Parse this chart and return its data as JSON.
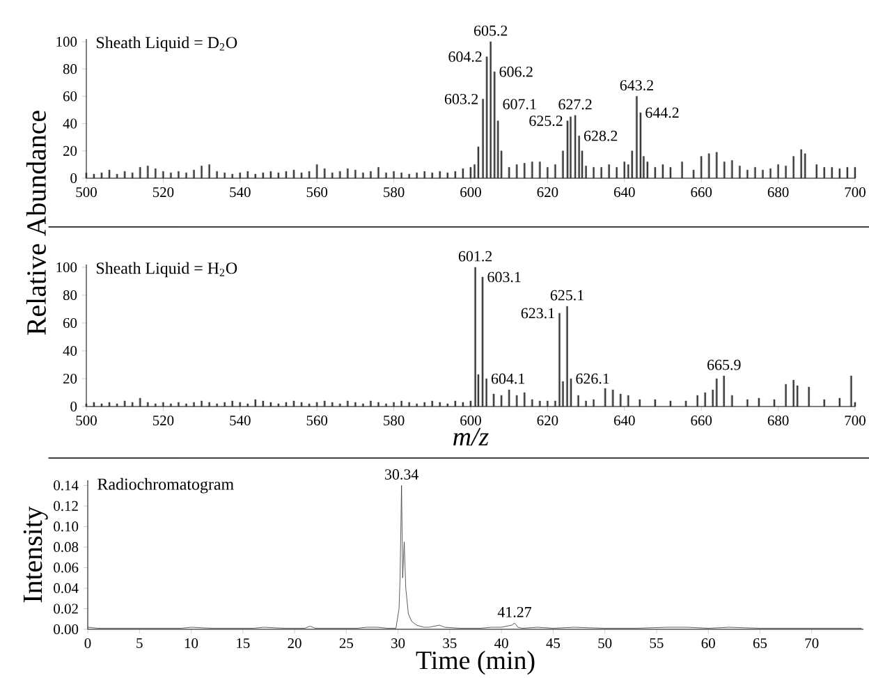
{
  "chart_data": [
    {
      "type": "bar",
      "title": "Sheath Liquid = D$_{2}$O",
      "ylabel": "Relative Abundance",
      "color": "#333333",
      "x": [
        500,
        502,
        504,
        506,
        508,
        510,
        512,
        514,
        516,
        518,
        520,
        522,
        524,
        526,
        528,
        530,
        532,
        534,
        536,
        538,
        540,
        542,
        544,
        546,
        548,
        550,
        552,
        554,
        556,
        558,
        560,
        562,
        564,
        566,
        568,
        570,
        572,
        574,
        576,
        578,
        580,
        582,
        584,
        586,
        588,
        590,
        592,
        594,
        596,
        598,
        600,
        601,
        602,
        603.2,
        604.2,
        605.2,
        606.2,
        607.1,
        608,
        610,
        612,
        614,
        616,
        618,
        620,
        622,
        624,
        625.2,
        626,
        627.2,
        628.2,
        629,
        630,
        632,
        634,
        636,
        638,
        640,
        641,
        642,
        643.2,
        644.2,
        645,
        646,
        648,
        650,
        652,
        655,
        658,
        660,
        662,
        664,
        666,
        668,
        670,
        672,
        674,
        676,
        678,
        680,
        682,
        684,
        686,
        687,
        690,
        692,
        694,
        696,
        698,
        700
      ],
      "values": [
        4,
        3,
        4,
        6,
        3,
        5,
        4,
        8,
        9,
        7,
        5,
        4,
        5,
        4,
        6,
        9,
        10,
        5,
        4,
        3,
        4,
        5,
        3,
        4,
        5,
        4,
        5,
        6,
        4,
        5,
        10,
        7,
        4,
        5,
        7,
        6,
        4,
        5,
        8,
        4,
        5,
        4,
        3,
        4,
        5,
        4,
        5,
        4,
        5,
        7,
        8,
        10,
        23,
        58,
        89,
        100,
        78,
        42,
        20,
        8,
        10,
        11,
        12,
        12,
        8,
        10,
        20,
        42,
        45,
        46,
        31,
        20,
        9,
        8,
        8,
        10,
        8,
        12,
        10,
        20,
        60,
        48,
        16,
        12,
        8,
        10,
        8,
        12,
        6,
        16,
        18,
        19,
        12,
        13,
        9,
        6,
        8,
        6,
        7,
        10,
        9,
        16,
        21,
        18,
        10,
        8,
        8,
        7,
        8,
        8
      ],
      "xlim": [
        500,
        700
      ],
      "ylim": [
        0,
        102
      ],
      "xticks": [
        500,
        520,
        540,
        560,
        580,
        600,
        620,
        640,
        660,
        680,
        700
      ],
      "yticks": [
        0,
        20,
        40,
        60,
        80,
        100
      ],
      "annotations": [
        {
          "text": "603.2",
          "x": 603.2,
          "y": 58
        },
        {
          "text": "604.2",
          "x": 604.2,
          "y": 89
        },
        {
          "text": "605.2",
          "x": 605.2,
          "y": 100
        },
        {
          "text": "606.2",
          "x": 606.2,
          "y": 78
        },
        {
          "text": "607.1",
          "x": 607.1,
          "y": 42
        },
        {
          "text": "625.2",
          "x": 625.2,
          "y": 42
        },
        {
          "text": "627.2",
          "x": 627.2,
          "y": 46
        },
        {
          "text": "628.2",
          "x": 628.2,
          "y": 31
        },
        {
          "text": "643.2",
          "x": 643.2,
          "y": 60
        },
        {
          "text": "644.2",
          "x": 644.2,
          "y": 48
        }
      ]
    },
    {
      "type": "bar",
      "title": "Sheath Liquid = H$_{2}$O",
      "xlabel": "m/z",
      "color": "#333333",
      "x": [
        500,
        502,
        504,
        506,
        508,
        510,
        512,
        514,
        516,
        518,
        520,
        522,
        524,
        526,
        528,
        530,
        532,
        534,
        536,
        538,
        540,
        542,
        544,
        546,
        548,
        550,
        552,
        554,
        556,
        558,
        560,
        562,
        564,
        566,
        568,
        570,
        572,
        574,
        576,
        578,
        580,
        582,
        584,
        586,
        588,
        590,
        592,
        594,
        596,
        598,
        600,
        601.2,
        602,
        603.1,
        604.1,
        606,
        608,
        610,
        612,
        614,
        616,
        618,
        620,
        622,
        623.1,
        624,
        625.1,
        626.1,
        628,
        630,
        632,
        635,
        637,
        639,
        641,
        644,
        648,
        652,
        656,
        659,
        661,
        663,
        664,
        665.9,
        668,
        672,
        675,
        679,
        682,
        684,
        685,
        688,
        692,
        696,
        699,
        700
      ],
      "values": [
        2,
        3,
        2,
        3,
        2,
        4,
        3,
        6,
        3,
        2,
        3,
        2,
        3,
        2,
        3,
        4,
        3,
        2,
        3,
        4,
        3,
        2,
        5,
        4,
        3,
        2,
        3,
        4,
        3,
        2,
        3,
        4,
        3,
        2,
        4,
        3,
        2,
        4,
        3,
        2,
        3,
        4,
        3,
        2,
        3,
        4,
        3,
        2,
        4,
        3,
        4,
        100,
        23,
        93,
        20,
        9,
        8,
        12,
        8,
        10,
        5,
        4,
        4,
        4,
        67,
        18,
        72,
        20,
        8,
        4,
        5,
        13,
        12,
        9,
        8,
        5,
        5,
        4,
        4,
        8,
        10,
        12,
        20,
        22,
        8,
        5,
        6,
        5,
        16,
        19,
        15,
        14,
        5,
        6,
        22,
        3
      ],
      "xlim": [
        500,
        700
      ],
      "ylim": [
        0,
        102
      ],
      "xticks": [
        500,
        520,
        540,
        560,
        580,
        600,
        620,
        640,
        660,
        680,
        700
      ],
      "yticks": [
        0,
        20,
        40,
        60,
        80,
        100
      ],
      "annotations": [
        {
          "text": "601.2",
          "x": 601.2,
          "y": 100
        },
        {
          "text": "603.1",
          "x": 603.1,
          "y": 93
        },
        {
          "text": "604.1",
          "x": 604.1,
          "y": 20
        },
        {
          "text": "623.1",
          "x": 623.1,
          "y": 67
        },
        {
          "text": "625.1",
          "x": 625.1,
          "y": 72
        },
        {
          "text": "626.1",
          "x": 626.1,
          "y": 20
        },
        {
          "text": "665.9",
          "x": 665.9,
          "y": 22
        }
      ]
    },
    {
      "type": "line",
      "title": "Radiochromatogram",
      "xlabel": "Time (min)",
      "ylabel": "Intensity",
      "color": "#333333",
      "x": [
        0,
        1,
        2,
        3,
        5,
        7,
        9,
        10,
        12,
        14,
        16,
        17,
        19,
        21,
        21.5,
        22,
        24,
        26,
        27,
        28,
        29,
        29.8,
        30.1,
        30.2,
        30.34,
        30.45,
        30.6,
        30.75,
        31,
        31.3,
        31.8,
        32.5,
        33,
        34,
        34.5,
        36,
        38,
        39,
        40,
        41,
        41.27,
        41.6,
        42,
        43.5,
        45,
        47,
        50,
        53,
        56,
        58,
        60,
        62,
        65,
        68,
        70,
        72,
        74.8
      ],
      "values": [
        0.002,
        0.001,
        0.001,
        0.001,
        0.001,
        0.001,
        0.001,
        0.002,
        0.001,
        0.001,
        0.001,
        0.002,
        0.001,
        0.001,
        0.003,
        0.001,
        0.001,
        0.001,
        0.002,
        0.002,
        0.001,
        0.001,
        0.02,
        0.05,
        0.14,
        0.05,
        0.085,
        0.04,
        0.015,
        0.008,
        0.004,
        0.002,
        0.002,
        0.004,
        0.002,
        0.001,
        0.001,
        0.002,
        0.002,
        0.004,
        0.006,
        0.002,
        0.001,
        0.002,
        0.001,
        0.002,
        0.001,
        0.001,
        0.002,
        0.002,
        0.001,
        0.002,
        0.001,
        0.001,
        0.001,
        0.001,
        0.001
      ],
      "xlim": [
        0,
        75
      ],
      "ylim": [
        0,
        0.145
      ],
      "xticks": [
        0,
        5,
        10,
        15,
        20,
        25,
        30,
        35,
        40,
        45,
        50,
        55,
        60,
        65,
        70
      ],
      "yticks": [
        {
          "value": 0,
          "label": "0.00"
        },
        {
          "value": 0.02,
          "label": "0.02"
        },
        {
          "value": 0.04,
          "label": "0.04"
        },
        {
          "value": 0.06,
          "label": "0.06"
        },
        {
          "value": 0.08,
          "label": "0.08"
        },
        {
          "value": 0.1,
          "label": "0.10"
        },
        {
          "value": 0.12,
          "label": "0.12"
        },
        {
          "value": 0.14,
          "label": "0.14"
        }
      ],
      "annotations": [
        {
          "text": "30.34",
          "x": 30.34,
          "y": 0.14
        },
        {
          "text": "41.27",
          "x": 41.27,
          "y": 0.006
        }
      ]
    }
  ]
}
